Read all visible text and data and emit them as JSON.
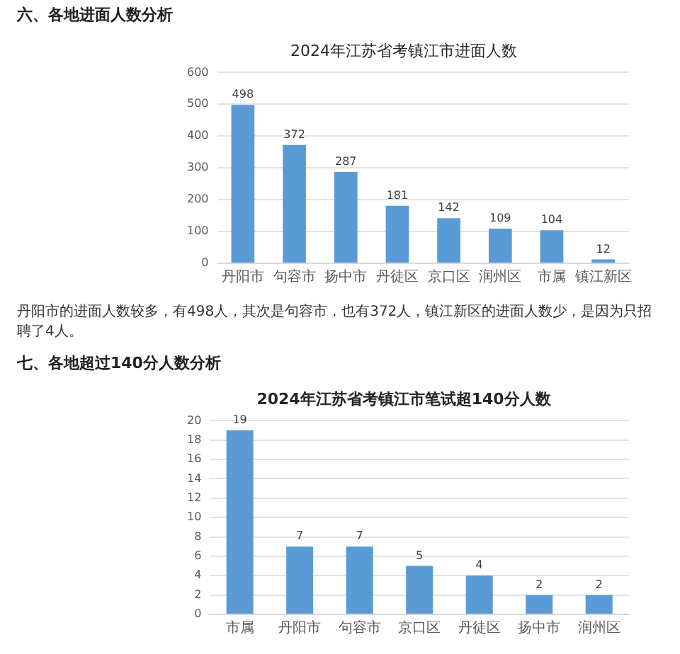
{
  "chart_data": [
    {
      "type": "bar",
      "title": "2024年江苏省考镇江市进面人数",
      "categories": [
        "丹阳市",
        "句容市",
        "扬中市",
        "丹徒区",
        "京口区",
        "润州区",
        "市属",
        "镇江新区"
      ],
      "values": [
        498,
        372,
        287,
        181,
        142,
        109,
        104,
        12
      ],
      "color": "#5b9bd5",
      "ylim": [
        0,
        600
      ],
      "yticks": [
        0,
        100,
        200,
        300,
        400,
        500,
        600
      ],
      "grid": "y",
      "data_labels": true,
      "annotations": [
        "六、各地进面人数分析",
        "丹阳市的进面人数较多，有498人，其次是句容市，也有372人，镇江新区的进面人数少，是因为只招聘了4人。"
      ]
    },
    {
      "type": "bar",
      "title": "2024年江苏省考镇江市笔试超140分人数",
      "categories": [
        "市属",
        "丹阳市",
        "句容市",
        "京口区",
        "丹徒区",
        "扬中市",
        "润州区"
      ],
      "values": [
        19,
        7,
        7,
        5,
        4,
        2,
        2
      ],
      "color": "#5b9bd5",
      "ylim": [
        0,
        20
      ],
      "yticks": [
        0,
        2,
        4,
        6,
        8,
        10,
        12,
        14,
        16,
        18,
        20
      ],
      "grid": "y",
      "data_labels": true,
      "annotations": [
        "七、各地超过140分人数分析"
      ]
    }
  ]
}
